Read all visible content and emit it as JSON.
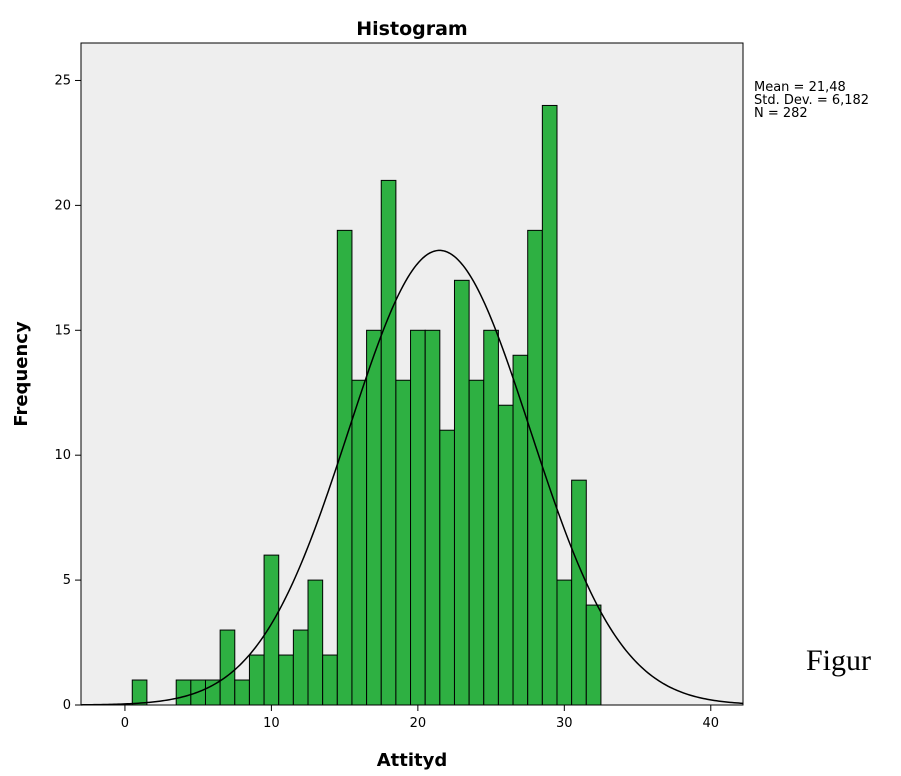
{
  "chart_data": {
    "type": "bar",
    "title": "Histogram",
    "xlabel": "Attityd",
    "ylabel": "Frequency",
    "xlim": [
      -3,
      42.2
    ],
    "ylim": [
      0,
      26.5
    ],
    "xticks": [
      0,
      10,
      20,
      30,
      40
    ],
    "yticks": [
      0,
      5,
      10,
      15,
      20,
      25
    ],
    "bin_width": 1,
    "bins": [
      {
        "x": 1,
        "value": 1
      },
      {
        "x": 4,
        "value": 1
      },
      {
        "x": 5,
        "value": 1
      },
      {
        "x": 6,
        "value": 1
      },
      {
        "x": 7,
        "value": 3
      },
      {
        "x": 8,
        "value": 1
      },
      {
        "x": 9,
        "value": 2
      },
      {
        "x": 10,
        "value": 6
      },
      {
        "x": 11,
        "value": 2
      },
      {
        "x": 12,
        "value": 3
      },
      {
        "x": 13,
        "value": 5
      },
      {
        "x": 14,
        "value": 2
      },
      {
        "x": 15,
        "value": 19
      },
      {
        "x": 16,
        "value": 13
      },
      {
        "x": 17,
        "value": 15
      },
      {
        "x": 18,
        "value": 21
      },
      {
        "x": 19,
        "value": 13
      },
      {
        "x": 20,
        "value": 15
      },
      {
        "x": 21,
        "value": 15
      },
      {
        "x": 22,
        "value": 11
      },
      {
        "x": 23,
        "value": 17
      },
      {
        "x": 24,
        "value": 13
      },
      {
        "x": 25,
        "value": 15
      },
      {
        "x": 26,
        "value": 12
      },
      {
        "x": 27,
        "value": 14
      },
      {
        "x": 28,
        "value": 19
      },
      {
        "x": 29,
        "value": 24
      },
      {
        "x": 30,
        "value": 5
      },
      {
        "x": 31,
        "value": 9
      },
      {
        "x": 32,
        "value": 4
      }
    ],
    "normal_curve": {
      "mean": 21.48,
      "std_dev": 6.182,
      "n": 282
    },
    "stats_text": [
      "Mean = 21,48",
      "Std. Dev. = 6,182",
      "N = 282"
    ],
    "colors": {
      "bar_fill": "#2eb042",
      "bar_stroke": "#000000",
      "plot_bg": "#eeeeee",
      "curve": "#000000"
    }
  },
  "side_text": "Figur"
}
